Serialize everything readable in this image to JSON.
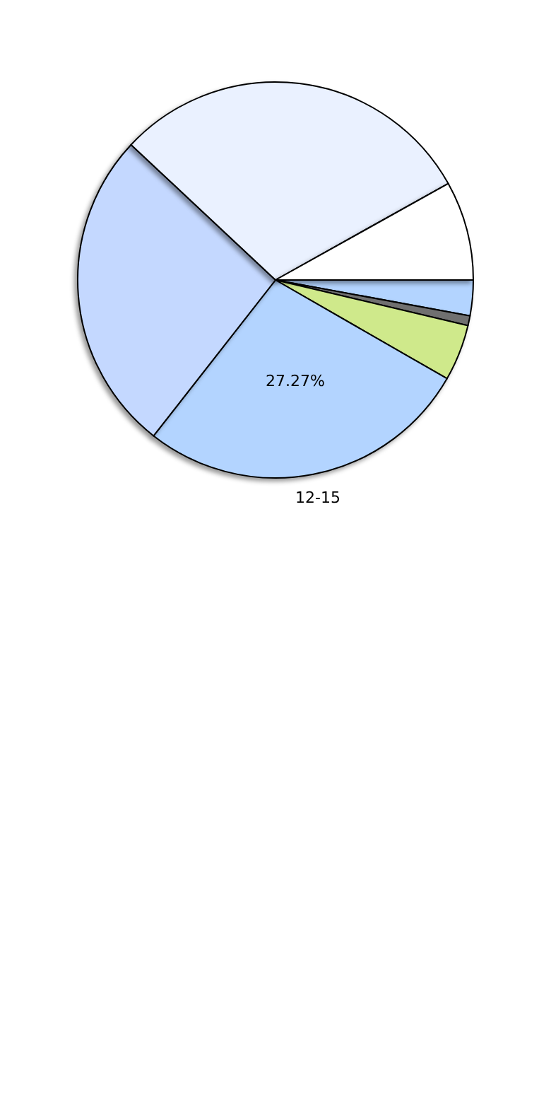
{
  "chart_data": {
    "type": "pie",
    "categories": [
      null,
      null,
      null,
      "12-15",
      null,
      null,
      null
    ],
    "values": [
      2.9,
      0.8,
      4.6,
      27.27,
      26.4,
      29.93,
      8.1
    ],
    "colors": [
      "#b3d4ff",
      "#707070",
      "#cfe98b",
      "#b3d4ff",
      "#c4d8ff",
      "#eaf1ff",
      "#ffffff"
    ],
    "value_labels": [
      null,
      null,
      null,
      "27.27%",
      null,
      null,
      null
    ]
  }
}
